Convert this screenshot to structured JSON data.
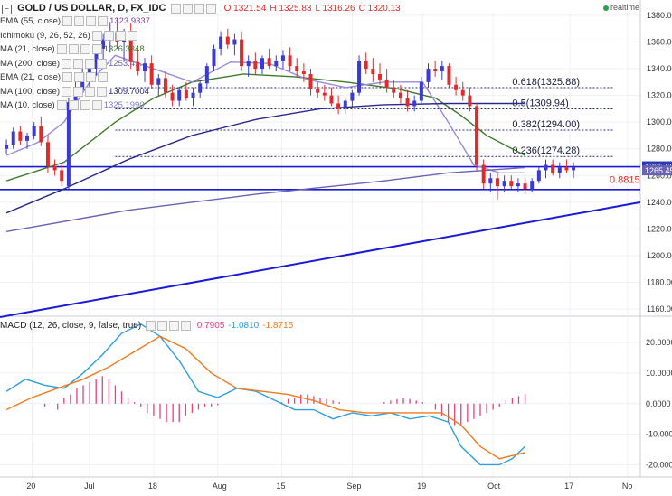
{
  "header": {
    "symbol": "GOLD / US DOLLAR, D, FX_IDC",
    "ohlc": [
      {
        "label": "O",
        "value": "1321.54"
      },
      {
        "label": "H",
        "value": "1325.83"
      },
      {
        "label": "L",
        "value": "1316.26"
      },
      {
        "label": "C",
        "value": "1320.13"
      }
    ],
    "realtime": "realtime"
  },
  "indicators": [
    {
      "name": "EMA (55, close)",
      "value": "1323.9337",
      "color": "#7b3f99"
    },
    {
      "name": "Ichimoku (9, 26, 52, 26)",
      "value": "",
      "color": "#333333"
    },
    {
      "name": "MA (21, close)",
      "value": "1326.3348",
      "color": "#3d7a2a"
    },
    {
      "name": "MA (200, close)",
      "value": "1253.4...",
      "color": "#6a62b3"
    },
    {
      "name": "EMA (21, close)",
      "value": "",
      "color": "#999999"
    },
    {
      "name": "MA (100, close)",
      "value": "1309.7004",
      "color": "#2a2a7a"
    },
    {
      "name": "MA (10, close)",
      "value": "1325.1990",
      "color": "#7b7bd0"
    }
  ],
  "macd_header": {
    "name": "MACD (12, 26, close, 9, false, true)",
    "values": [
      {
        "text": "0.7905",
        "color": "#e8407a"
      },
      {
        "text": "-1.0810",
        "color": "#2f9de0"
      },
      {
        "text": "-1.8715",
        "color": "#f07a20"
      }
    ]
  },
  "colors": {
    "bull": "#3a3ad8",
    "bear": "#e32a2a",
    "ma21": "#3d7a2a",
    "ma10": "#9a8ad8",
    "ma100": "#2a2a8a",
    "ma200": "#6a62b3",
    "trend": "#1a1ad8",
    "macd_line": "#2f9de0",
    "signal_line": "#f07a20",
    "hist": "#e8407a"
  },
  "chart_data": [
    {
      "type": "candlestick",
      "title": "GOLD / US DOLLAR, D, FX_IDC",
      "y_axis_side": "right",
      "ylim": [
        1156,
        1382
      ],
      "yticks": [
        "1380.00",
        "1360.00",
        "1340.00",
        "1320.00",
        "1300.00",
        "1280.00",
        "1260.00",
        "1240.00",
        "1220.00",
        "1200.00",
        "1180.00",
        "1160.00"
      ],
      "x_tick_labels": [
        "20",
        "Jul",
        "18",
        "Aug",
        "15",
        "Sep",
        "19",
        "Oct",
        "17",
        "No"
      ],
      "x_tick_index": [
        5,
        14,
        24,
        34,
        44,
        55,
        66,
        77,
        89,
        98
      ],
      "x_range": [
        0,
        100
      ],
      "candles": [
        {
          "o": 1280,
          "h": 1287,
          "l": 1276,
          "c": 1283
        },
        {
          "o": 1283,
          "h": 1296,
          "l": 1280,
          "c": 1293
        },
        {
          "o": 1293,
          "h": 1297,
          "l": 1283,
          "c": 1286
        },
        {
          "o": 1286,
          "h": 1292,
          "l": 1280,
          "c": 1290
        },
        {
          "o": 1290,
          "h": 1300,
          "l": 1287,
          "c": 1297
        },
        {
          "o": 1297,
          "h": 1304,
          "l": 1282,
          "c": 1285
        },
        {
          "o": 1285,
          "h": 1290,
          "l": 1262,
          "c": 1267
        },
        {
          "o": 1267,
          "h": 1272,
          "l": 1260,
          "c": 1264
        },
        {
          "o": 1264,
          "h": 1268,
          "l": 1252,
          "c": 1256
        },
        {
          "o": 1252,
          "h": 1318,
          "l": 1250,
          "c": 1315
        },
        {
          "o": 1315,
          "h": 1330,
          "l": 1309,
          "c": 1324
        },
        {
          "o": 1324,
          "h": 1342,
          "l": 1320,
          "c": 1337
        },
        {
          "o": 1337,
          "h": 1345,
          "l": 1325,
          "c": 1340
        },
        {
          "o": 1340,
          "h": 1358,
          "l": 1335,
          "c": 1355
        },
        {
          "o": 1355,
          "h": 1366,
          "l": 1345,
          "c": 1362
        },
        {
          "o": 1362,
          "h": 1375,
          "l": 1352,
          "c": 1368
        },
        {
          "o": 1368,
          "h": 1378,
          "l": 1355,
          "c": 1360
        },
        {
          "o": 1360,
          "h": 1370,
          "l": 1345,
          "c": 1366
        },
        {
          "o": 1366,
          "h": 1374,
          "l": 1340,
          "c": 1345
        },
        {
          "o": 1345,
          "h": 1355,
          "l": 1335,
          "c": 1338
        },
        {
          "o": 1338,
          "h": 1348,
          "l": 1330,
          "c": 1344
        },
        {
          "o": 1344,
          "h": 1350,
          "l": 1325,
          "c": 1328
        },
        {
          "o": 1328,
          "h": 1336,
          "l": 1320,
          "c": 1333
        },
        {
          "o": 1333,
          "h": 1338,
          "l": 1318,
          "c": 1322
        },
        {
          "o": 1322,
          "h": 1328,
          "l": 1312,
          "c": 1316
        },
        {
          "o": 1316,
          "h": 1326,
          "l": 1312,
          "c": 1324
        },
        {
          "o": 1324,
          "h": 1330,
          "l": 1316,
          "c": 1318
        },
        {
          "o": 1318,
          "h": 1326,
          "l": 1312,
          "c": 1322
        },
        {
          "o": 1322,
          "h": 1332,
          "l": 1318,
          "c": 1329
        },
        {
          "o": 1329,
          "h": 1344,
          "l": 1325,
          "c": 1342
        },
        {
          "o": 1342,
          "h": 1358,
          "l": 1338,
          "c": 1355
        },
        {
          "o": 1355,
          "h": 1368,
          "l": 1350,
          "c": 1364
        },
        {
          "o": 1364,
          "h": 1370,
          "l": 1355,
          "c": 1358
        },
        {
          "o": 1358,
          "h": 1366,
          "l": 1350,
          "c": 1362
        },
        {
          "o": 1362,
          "h": 1368,
          "l": 1338,
          "c": 1342
        },
        {
          "o": 1342,
          "h": 1350,
          "l": 1334,
          "c": 1346
        },
        {
          "o": 1346,
          "h": 1352,
          "l": 1336,
          "c": 1340
        },
        {
          "o": 1340,
          "h": 1350,
          "l": 1336,
          "c": 1348
        },
        {
          "o": 1348,
          "h": 1355,
          "l": 1340,
          "c": 1342
        },
        {
          "o": 1342,
          "h": 1350,
          "l": 1338,
          "c": 1346
        },
        {
          "o": 1346,
          "h": 1354,
          "l": 1340,
          "c": 1350
        },
        {
          "o": 1350,
          "h": 1356,
          "l": 1338,
          "c": 1342
        },
        {
          "o": 1342,
          "h": 1348,
          "l": 1334,
          "c": 1338
        },
        {
          "o": 1338,
          "h": 1344,
          "l": 1330,
          "c": 1336
        },
        {
          "o": 1336,
          "h": 1340,
          "l": 1320,
          "c": 1325
        },
        {
          "o": 1325,
          "h": 1330,
          "l": 1318,
          "c": 1322
        },
        {
          "o": 1322,
          "h": 1328,
          "l": 1316,
          "c": 1320
        },
        {
          "o": 1320,
          "h": 1326,
          "l": 1312,
          "c": 1314
        },
        {
          "o": 1314,
          "h": 1320,
          "l": 1306,
          "c": 1310
        },
        {
          "o": 1310,
          "h": 1318,
          "l": 1306,
          "c": 1316
        },
        {
          "o": 1316,
          "h": 1324,
          "l": 1312,
          "c": 1322
        },
        {
          "o": 1322,
          "h": 1350,
          "l": 1320,
          "c": 1346
        },
        {
          "o": 1346,
          "h": 1352,
          "l": 1336,
          "c": 1340
        },
        {
          "o": 1340,
          "h": 1348,
          "l": 1330,
          "c": 1336
        },
        {
          "o": 1336,
          "h": 1344,
          "l": 1328,
          "c": 1332
        },
        {
          "o": 1332,
          "h": 1340,
          "l": 1322,
          "c": 1326
        },
        {
          "o": 1326,
          "h": 1332,
          "l": 1318,
          "c": 1322
        },
        {
          "o": 1322,
          "h": 1328,
          "l": 1314,
          "c": 1318
        },
        {
          "o": 1318,
          "h": 1324,
          "l": 1308,
          "c": 1312
        },
        {
          "o": 1312,
          "h": 1320,
          "l": 1308,
          "c": 1316
        },
        {
          "o": 1316,
          "h": 1334,
          "l": 1314,
          "c": 1330
        },
        {
          "o": 1330,
          "h": 1344,
          "l": 1326,
          "c": 1340
        },
        {
          "o": 1340,
          "h": 1346,
          "l": 1334,
          "c": 1338
        },
        {
          "o": 1338,
          "h": 1346,
          "l": 1332,
          "c": 1342
        },
        {
          "o": 1342,
          "h": 1344,
          "l": 1326,
          "c": 1328
        },
        {
          "o": 1328,
          "h": 1334,
          "l": 1320,
          "c": 1324
        },
        {
          "o": 1324,
          "h": 1330,
          "l": 1316,
          "c": 1320
        },
        {
          "o": 1320,
          "h": 1326,
          "l": 1308,
          "c": 1312
        },
        {
          "o": 1312,
          "h": 1314,
          "l": 1264,
          "c": 1268
        },
        {
          "o": 1268,
          "h": 1272,
          "l": 1250,
          "c": 1254
        },
        {
          "o": 1254,
          "h": 1262,
          "l": 1248,
          "c": 1258
        },
        {
          "o": 1258,
          "h": 1262,
          "l": 1242,
          "c": 1252
        },
        {
          "o": 1252,
          "h": 1260,
          "l": 1248,
          "c": 1256
        },
        {
          "o": 1256,
          "h": 1260,
          "l": 1250,
          "c": 1252
        },
        {
          "o": 1252,
          "h": 1258,
          "l": 1248,
          "c": 1254
        },
        {
          "o": 1254,
          "h": 1258,
          "l": 1246,
          "c": 1250
        },
        {
          "o": 1250,
          "h": 1258,
          "l": 1248,
          "c": 1256
        },
        {
          "o": 1256,
          "h": 1266,
          "l": 1254,
          "c": 1264
        },
        {
          "o": 1264,
          "h": 1272,
          "l": 1258,
          "c": 1268
        },
        {
          "o": 1268,
          "h": 1272,
          "l": 1260,
          "c": 1262
        },
        {
          "o": 1262,
          "h": 1270,
          "l": 1258,
          "c": 1266
        },
        {
          "o": 1266,
          "h": 1272,
          "l": 1262,
          "c": 1264
        },
        {
          "o": 1264,
          "h": 1270,
          "l": 1258,
          "c": 1266
        }
      ],
      "candle_x_start": 1,
      "candle_x_spacing": 1.08,
      "overlays": [
        {
          "name": "MA (21, close)",
          "color": "#3d7a2a",
          "x": [
            1,
            10,
            18,
            24,
            30,
            38,
            46,
            54,
            62,
            68,
            72,
            76,
            82
          ],
          "y": [
            1256,
            1270,
            1300,
            1318,
            1330,
            1336,
            1334,
            1330,
            1325,
            1318,
            1305,
            1290,
            1275
          ]
        },
        {
          "name": "MA (10, close)",
          "color": "#9a8ad8",
          "x": [
            1,
            6,
            10,
            14,
            18,
            24,
            30,
            36,
            42,
            48,
            54,
            60,
            66,
            70,
            74,
            78,
            82
          ],
          "y": [
            1275,
            1285,
            1300,
            1330,
            1350,
            1340,
            1330,
            1345,
            1344,
            1332,
            1326,
            1330,
            1330,
            1300,
            1268,
            1262,
            1262
          ]
        },
        {
          "name": "MA (100, close)",
          "color": "#2a2a8a",
          "x": [
            1,
            10,
            20,
            30,
            40,
            50,
            60,
            70,
            76,
            82
          ],
          "y": [
            1232,
            1250,
            1272,
            1290,
            1302,
            1310,
            1313,
            1314,
            1314,
            1314
          ]
        },
        {
          "name": "MA (200, close)",
          "color": "#6a62b3",
          "x": [
            1,
            20,
            40,
            60,
            70,
            76,
            82
          ],
          "y": [
            1218,
            1234,
            1246,
            1256,
            1262,
            1264,
            1266
          ]
        }
      ],
      "horizontal_lines": [
        {
          "label": "0.618(1325.88)",
          "y": 1325.88,
          "style": "dashed"
        },
        {
          "label": "0.5(1309.94)",
          "y": 1309.94,
          "style": "dashed"
        },
        {
          "label": "0.382(1294.00)",
          "y": 1294.0,
          "style": "dashed"
        },
        {
          "label": "0.236(1274.28)",
          "y": 1274.28,
          "style": "dashed"
        },
        {
          "label": "",
          "y": 1266.6,
          "style": "solid"
        },
        {
          "label": "",
          "y": 1249.5,
          "style": "solid"
        }
      ],
      "trendline": {
        "x": [
          0,
          100
        ],
        "y": [
          1154,
          1240
        ]
      },
      "right_labels": [
        {
          "text": "1266.68",
          "y": 1266.6,
          "bg": "#2a3ab0"
        },
        {
          "text": "1265.45",
          "y": 1263.5,
          "bg": "#6a62b3"
        }
      ],
      "annotation": {
        "text": "0.8815",
        "y": 1253,
        "color": "#e32a2a"
      }
    },
    {
      "type": "line",
      "title": "MACD (12, 26, close, 9, false, true)",
      "ylim": [
        -24,
        28
      ],
      "yticks": [
        "20.0000",
        "10.0000",
        "0.0000",
        "-10.0000",
        "-20.0000"
      ],
      "x_range": [
        0,
        100
      ],
      "series": [
        {
          "name": "MACD",
          "color": "#2f9de0",
          "x": [
            1,
            4,
            7,
            10,
            13,
            16,
            19,
            22,
            25,
            28,
            31,
            34,
            37,
            40,
            43,
            46,
            49,
            52,
            55,
            58,
            61,
            64,
            67,
            70,
            72,
            75,
            78,
            80,
            82
          ],
          "y": [
            4,
            8,
            6,
            5,
            10,
            16,
            23,
            26,
            22,
            14,
            4,
            2,
            5,
            4,
            1,
            -2,
            -2,
            -5,
            -3,
            -4,
            -3,
            -5,
            -4,
            -6,
            -14,
            -20,
            -20,
            -18,
            -14
          ]
        },
        {
          "name": "Signal",
          "color": "#f07a20",
          "x": [
            1,
            5,
            9,
            13,
            17,
            21,
            25,
            29,
            33,
            37,
            41,
            45,
            49,
            53,
            57,
            61,
            65,
            69,
            72,
            75,
            78,
            82
          ],
          "y": [
            -2,
            2,
            5,
            8,
            12,
            17,
            22,
            18,
            10,
            5,
            4,
            3,
            1,
            -2,
            -3,
            -3,
            -3,
            -3,
            -7,
            -14,
            -18,
            -16
          ]
        }
      ],
      "histogram": {
        "name": "Histogram",
        "color": "#e8407a",
        "x": [
          7,
          9,
          10,
          11,
          12,
          13,
          14,
          15,
          16,
          17,
          18,
          19,
          20,
          21,
          22,
          23,
          24,
          25,
          26,
          27,
          28,
          29,
          30,
          31,
          32,
          33,
          34,
          44,
          45,
          46,
          47,
          48,
          49,
          50,
          51,
          52,
          53,
          60,
          61,
          62,
          63,
          64,
          65,
          66,
          68,
          69,
          70,
          71,
          72,
          73,
          74,
          75,
          76,
          77,
          78,
          79,
          80,
          81,
          82
        ],
        "y": [
          -1,
          -2,
          2,
          3,
          5,
          6,
          7,
          8,
          9,
          8,
          6,
          4,
          2,
          0.5,
          -1,
          -3,
          -4,
          -5,
          -6,
          -6,
          -6,
          -4,
          -3,
          -2,
          -1,
          -1,
          -0.5,
          0.5,
          1.5,
          2,
          3,
          3,
          2.5,
          2,
          1.5,
          1,
          0.5,
          0.5,
          1,
          1.5,
          2,
          1.5,
          1,
          0.5,
          -2,
          -4,
          -6,
          -7,
          -7,
          -6,
          -5,
          -4,
          -3,
          -2,
          -1,
          1,
          2,
          2.5,
          3
        ]
      },
      "x_tick_labels": [
        "20",
        "Jul",
        "18",
        "Aug",
        "15",
        "Sep",
        "19",
        "Oct",
        "17",
        "No"
      ],
      "x_tick_index": [
        5,
        14,
        24,
        34,
        44,
        55,
        66,
        77,
        89,
        98
      ]
    }
  ]
}
